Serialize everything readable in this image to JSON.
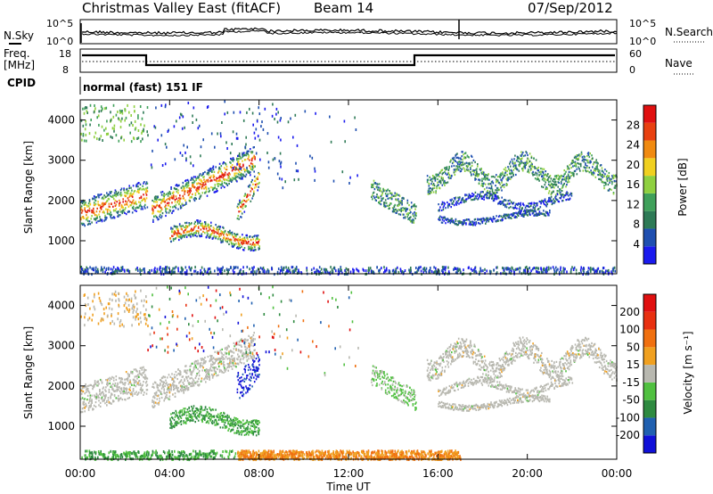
{
  "header": {
    "radar": "Christmas Valley East (fitACF)",
    "beam": "Beam 14",
    "date": "07/Sep/2012"
  },
  "panels": {
    "nsky_label": "N.Sky",
    "nsky_ticks": [
      "10^5",
      "10^0"
    ],
    "nsearch_label": "N.Search",
    "nsearch_ticks": [
      "10^5",
      "10^0"
    ],
    "freq_label_1": "Freq.",
    "freq_label_2": "[MHz]",
    "freq_ticks": [
      "18",
      "8"
    ],
    "nave_label": "Nave",
    "nave_ticks": [
      "60",
      "0"
    ],
    "cpid_label": "CPID",
    "cpid_text": "normal (fast) 151 IF"
  },
  "chart_data": [
    {
      "type": "heatmap",
      "panel": "power",
      "ylabel": "Slant Range [km]",
      "yticks": [
        "1000",
        "2000",
        "3000",
        "4000"
      ],
      "ylim": [
        180,
        4500
      ],
      "colorbar_label": "Power [dB]",
      "colorbar_ticks": [
        "4",
        "8",
        "12",
        "16",
        "20",
        "24",
        "28"
      ],
      "colors": [
        "#1a1aee",
        "#1f4fb0",
        "#2e7a56",
        "#3fa05a",
        "#8fd040",
        "#f0d020",
        "#f08a10",
        "#e84010",
        "#e01010"
      ],
      "features": [
        {
          "t": [
            0,
            3
          ],
          "range": [
            1600,
            2400
          ],
          "level": "high"
        },
        {
          "t": [
            3.2,
            7.8
          ],
          "range": [
            1500,
            3100
          ],
          "level": "high"
        },
        {
          "t": [
            4,
            8
          ],
          "range": [
            800,
            1500
          ],
          "level": "high"
        },
        {
          "t": [
            13,
            15
          ],
          "range": [
            1500,
            2200
          ],
          "level": "medium"
        },
        {
          "t": [
            15.5,
            24
          ],
          "range": [
            1800,
            3300
          ],
          "level": "medium"
        }
      ]
    },
    {
      "type": "heatmap",
      "panel": "velocity",
      "ylabel": "Slant Range [km]",
      "yticks": [
        "1000",
        "2000",
        "3000",
        "4000"
      ],
      "ylim": [
        180,
        4500
      ],
      "colorbar_label": "Velocity [m s⁻¹]",
      "colorbar_ticks": [
        "200",
        "100",
        "50",
        "15",
        "-15",
        "-50",
        "-100",
        "-200"
      ],
      "colors": [
        "#1010d8",
        "#2060b0",
        "#2e8a40",
        "#50c040",
        "#b8b8b0",
        "#f0a020",
        "#f07010",
        "#e83010",
        "#e01010"
      ]
    }
  ],
  "x_axis": {
    "label": "Time UT",
    "ticks": [
      "00:00",
      "04:00",
      "08:00",
      "12:00",
      "16:00",
      "20:00",
      "00:00"
    ]
  }
}
